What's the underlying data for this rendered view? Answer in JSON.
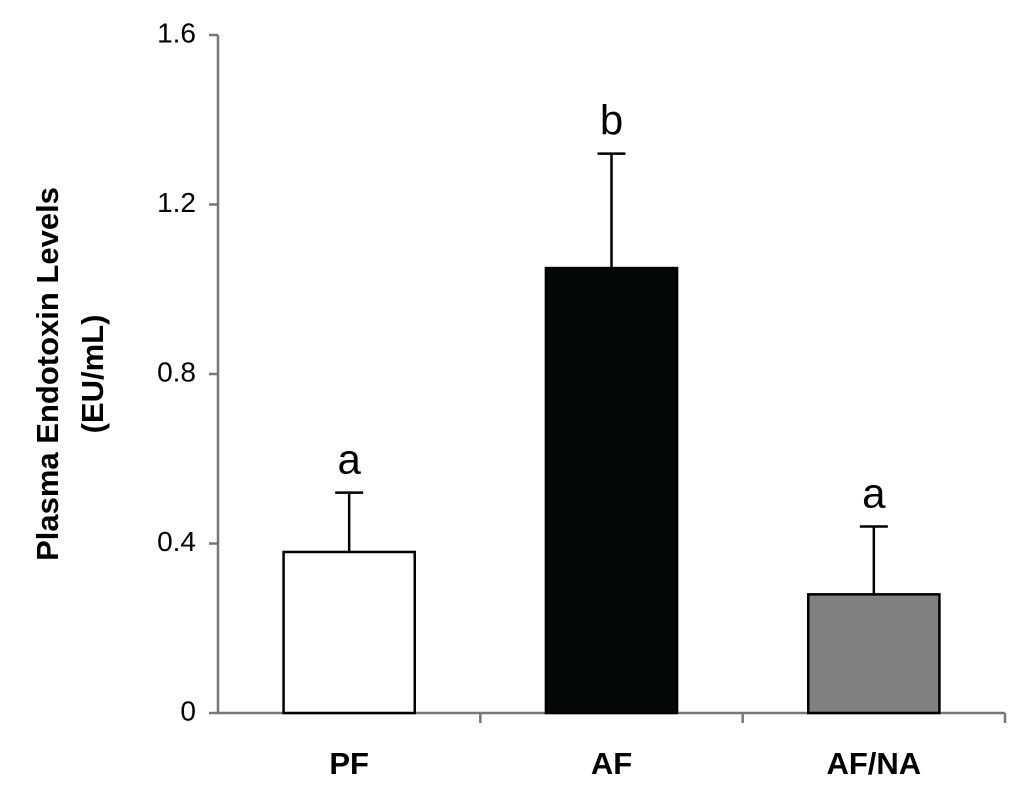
{
  "chart_data": {
    "type": "bar",
    "ylabel": [
      "Plasma Endotoxin Levels",
      "(EU/mL)"
    ],
    "categories": [
      "PF",
      "AF",
      "AF/NA"
    ],
    "values": [
      0.38,
      1.05,
      0.28
    ],
    "errors": [
      0.14,
      0.27,
      0.16
    ],
    "colors": [
      "#ffffff",
      "#050808",
      "#808080"
    ],
    "annotations": [
      "a",
      "b",
      "a"
    ],
    "ylim": [
      0,
      1.6
    ],
    "yticks": [
      0,
      0.4,
      0.8,
      1.2,
      1.6
    ]
  }
}
